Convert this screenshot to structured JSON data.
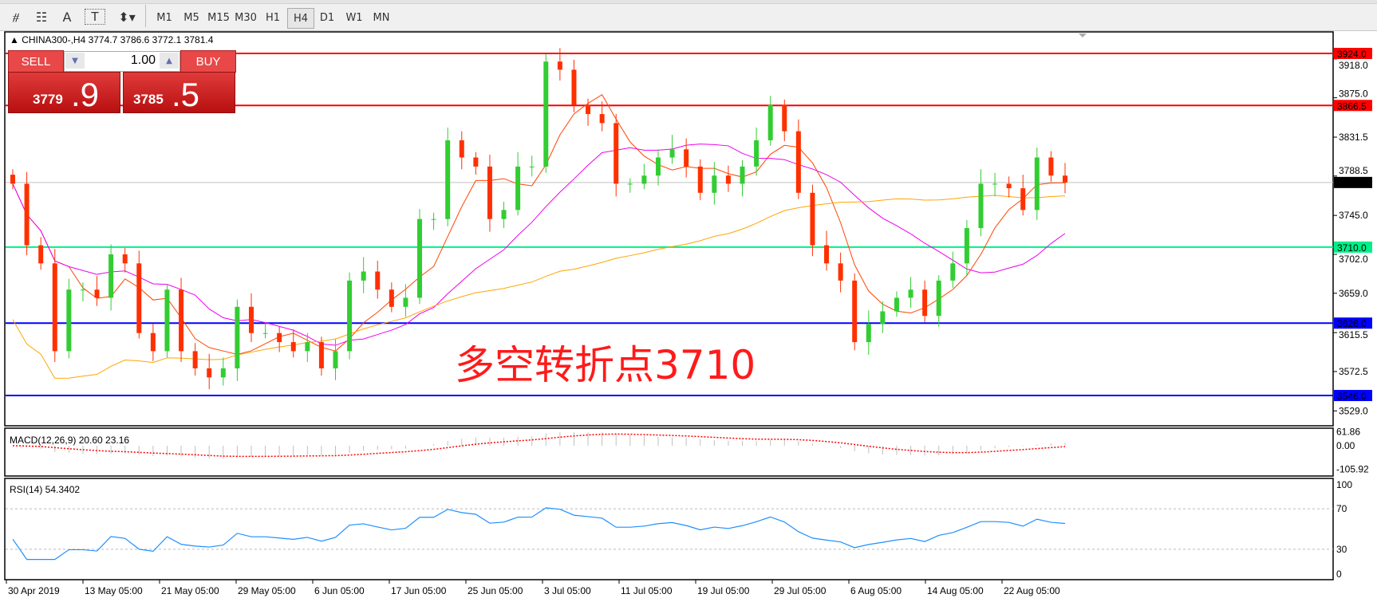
{
  "toolbar": {
    "tools": [
      "fibonacci-expansion-icon",
      "fibonacci-fan-icon",
      "text-icon",
      "text-label-icon",
      "arrows-icon"
    ],
    "text_tool_label": "A",
    "timeframes": [
      "M1",
      "M5",
      "M15",
      "M30",
      "H1",
      "H4",
      "D1",
      "W1",
      "MN"
    ],
    "active_timeframe": "H4"
  },
  "header": {
    "text": "CHINA300-,H4  3774.7 3786.6 3772.1 3781.4"
  },
  "trade_panel": {
    "sell_label": "SELL",
    "buy_label": "BUY",
    "lot": "1.00",
    "sell_price_main": "3779",
    "sell_price_big": ".9",
    "buy_price_main": "3785",
    "buy_price_big": ".5"
  },
  "annotation": "多空转折点3710",
  "chart_data": [
    {
      "type": "candlestick",
      "symbol": "CHINA300-",
      "timeframe": "H4",
      "ylim": [
        3507,
        3947
      ],
      "price_ticks": [
        "3918.0",
        "3875.0",
        "3831.5",
        "3788.5",
        "3745.0",
        "3702.0",
        "3659.0",
        "3615.5",
        "3572.5",
        "3529.0"
      ],
      "x_tick_labels": [
        "30 Apr 2019",
        "13 May 05:00",
        "21 May 05:00",
        "29 May 05:00",
        "6 Jun 05:00",
        "17 Jun 05:00",
        "25 Jun 05:00",
        "3 Jul 05:00",
        "11 Jul 05:00",
        "19 Jul 05:00",
        "29 Jul 05:00",
        "6 Aug 05:00",
        "14 Aug 05:00",
        "22 Aug 05:00"
      ],
      "closes": [
        3780,
        3712,
        3692,
        3595,
        3663,
        3663,
        3654,
        3702,
        3692,
        3615,
        3595,
        3663,
        3595,
        3576,
        3566,
        3576,
        3644,
        3615,
        3615,
        3605,
        3595,
        3605,
        3576,
        3595,
        3673,
        3683,
        3663,
        3644,
        3654,
        3741,
        3741,
        3828,
        3809,
        3799,
        3741,
        3751,
        3799,
        3799,
        3915,
        3906,
        3867,
        3857,
        3847,
        3780,
        3780,
        3789,
        3809,
        3818,
        3799,
        3770,
        3789,
        3780,
        3799,
        3828,
        3867,
        3838,
        3770,
        3712,
        3692,
        3673,
        3605,
        3625,
        3639,
        3654,
        3663,
        3634,
        3673,
        3692,
        3731,
        3780,
        3780,
        3775,
        3751,
        3809,
        3789,
        3781.4
      ],
      "last_price": {
        "value": "3781.4",
        "color": "#000000"
      },
      "horizontal_lines": [
        {
          "label": "3924.0",
          "value": 3924.0,
          "color": "#ff0000"
        },
        {
          "label": "3866.5",
          "value": 3866.5,
          "color": "#ff0000"
        },
        {
          "label": "3710.0",
          "value": 3710.0,
          "color": "#00ee88"
        },
        {
          "label": "3626.0",
          "value": 3626.0,
          "color": "#0000ff"
        },
        {
          "label": "3546.0",
          "value": 3546.0,
          "color": "#0000ff"
        }
      ],
      "moving_averages": [
        {
          "color": "#ff4500"
        },
        {
          "color": "#ee00ee"
        },
        {
          "color": "#ffa500"
        }
      ],
      "bull_color": "#32cd32",
      "bear_color": "#ff3000",
      "grid": false
    },
    {
      "type": "bar+line",
      "label": "MACD(12,26,9) 20.60 23.16",
      "ticks": [
        "61.86",
        "0.00",
        "-105.92"
      ],
      "ylim": [
        -105.92,
        61.86
      ],
      "histogram_color": "#c0c0c0",
      "signal_color": "#ff0000"
    },
    {
      "type": "line",
      "label": "RSI(14) 54.3402",
      "ticks": [
        "100",
        "70",
        "30",
        "0"
      ],
      "ylim": [
        0,
        100
      ],
      "levels": [
        70,
        30
      ],
      "line_color": "#1e90ff"
    }
  ]
}
